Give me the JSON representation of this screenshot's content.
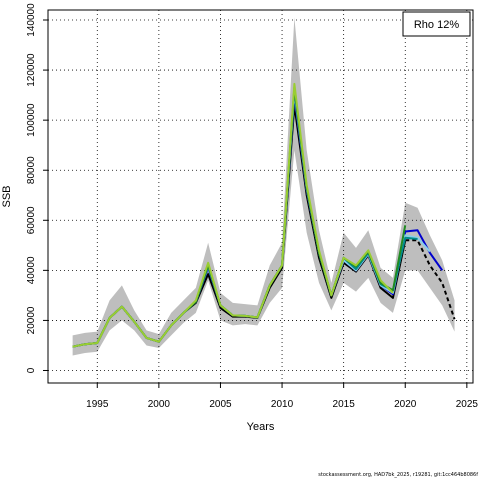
{
  "chart_data": {
    "type": "line",
    "xlabel": "Years",
    "ylabel": "SSB",
    "xlim": [
      1991,
      2025.5
    ],
    "ylim": [
      -5000,
      144000
    ],
    "x_ticks": [
      1995,
      2000,
      2005,
      2010,
      2015,
      2020,
      2025
    ],
    "y_ticks": [
      0,
      20000,
      40000,
      60000,
      80000,
      100000,
      120000,
      140000
    ],
    "grid": true,
    "legend": {
      "text": "Rho 12%",
      "placement": "top-right"
    },
    "ci_band": {
      "color": "#bebebe",
      "x": [
        1993,
        1994,
        1995,
        1996,
        1997,
        1998,
        1999,
        2000,
        2001,
        2002,
        2003,
        2004,
        2005,
        2006,
        2007,
        2008,
        2009,
        2010,
        2011,
        2012,
        2013,
        2014,
        2015,
        2016,
        2017,
        2018,
        2019,
        2020,
        2021,
        2022,
        2023,
        2024
      ],
      "upper": [
        14000,
        15000,
        15500,
        28000,
        34000,
        24000,
        16000,
        14500,
        23000,
        28000,
        33000,
        51000,
        31000,
        27000,
        26500,
        26000,
        42000,
        51000,
        141000,
        88000,
        56000,
        35000,
        55000,
        49000,
        56000,
        41000,
        37000,
        67000,
        65000,
        54000,
        44000,
        28000
      ],
      "lower": [
        6000,
        7000,
        7500,
        16000,
        20000,
        16000,
        10000,
        9000,
        14000,
        19000,
        23000,
        36000,
        20000,
        18000,
        18500,
        18000,
        27000,
        33000,
        88000,
        55000,
        35000,
        24000,
        35000,
        31500,
        37000,
        27000,
        23000,
        40000,
        40000,
        33000,
        26000,
        15500
      ]
    },
    "series": [
      {
        "color": "#000000",
        "style": "solid",
        "x": [
          1993,
          1994,
          1995,
          1996,
          1997,
          1998,
          1999,
          2000,
          2001,
          2002,
          2003,
          2004,
          2005,
          2006,
          2007,
          2008,
          2009,
          2010,
          2011,
          2012,
          2013,
          2014,
          2015,
          2016,
          2017,
          2018,
          2019,
          2020
        ],
        "y": [
          9500,
          10500,
          11000,
          21000,
          25500,
          19500,
          13000,
          11500,
          18000,
          23000,
          27000,
          38500,
          25000,
          21500,
          21500,
          21000,
          33000,
          41000,
          106000,
          70000,
          45000,
          29000,
          43000,
          39500,
          46000,
          33000,
          29000,
          52000
        ]
      },
      {
        "color": "#000000",
        "style": "dashed",
        "x": [
          2020,
          2021,
          2022,
          2023,
          2024
        ],
        "y": [
          52000,
          52000,
          42000,
          35000,
          20500
        ]
      },
      {
        "color": "#0000cd",
        "style": "solid",
        "x": [
          1993,
          1994,
          1995,
          1996,
          1997,
          1998,
          1999,
          2000,
          2001,
          2002,
          2003,
          2004,
          2005,
          2006,
          2007,
          2008,
          2009,
          2010,
          2011,
          2012,
          2013,
          2014,
          2015,
          2016,
          2017,
          2018,
          2019,
          2020,
          2021,
          2022,
          2023
        ],
        "y": [
          9500,
          10500,
          11000,
          21000,
          25500,
          19500,
          13000,
          11500,
          18000,
          23000,
          27500,
          41000,
          26000,
          22000,
          21800,
          21200,
          34000,
          42000,
          110000,
          72000,
          47000,
          30000,
          44000,
          40000,
          46500,
          34000,
          30500,
          55500,
          56000,
          47000,
          40000
        ]
      },
      {
        "color": "#87ceeb",
        "style": "solid",
        "x": [
          1993,
          1994,
          1995,
          1996,
          1997,
          1998,
          1999,
          2000,
          2001,
          2002,
          2003,
          2004,
          2005,
          2006,
          2007,
          2008,
          2009,
          2010,
          2011,
          2012,
          2013,
          2014,
          2015,
          2016,
          2017,
          2018,
          2019,
          2020,
          2021,
          2022
        ],
        "y": [
          9500,
          10500,
          11000,
          21000,
          25500,
          19500,
          13000,
          11500,
          18000,
          23000,
          27500,
          41500,
          26000,
          22000,
          21800,
          21200,
          34000,
          42000,
          111000,
          72500,
          47000,
          30000,
          44000,
          40000,
          46500,
          34000,
          31000,
          54000,
          53000,
          47500
        ]
      },
      {
        "color": "#008b8b",
        "style": "solid",
        "x": [
          1993,
          1994,
          1995,
          1996,
          1997,
          1998,
          1999,
          2000,
          2001,
          2002,
          2003,
          2004,
          2005,
          2006,
          2007,
          2008,
          2009,
          2010,
          2011,
          2012,
          2013,
          2014,
          2015,
          2016,
          2017,
          2018,
          2019,
          2020,
          2021
        ],
        "y": [
          9500,
          10500,
          11000,
          21000,
          25500,
          19500,
          13000,
          11500,
          18000,
          23000,
          27500,
          41800,
          26000,
          22000,
          21800,
          21200,
          34000,
          42000,
          112000,
          73000,
          47000,
          30000,
          45000,
          40500,
          47000,
          34500,
          32000,
          53000,
          52500
        ]
      },
      {
        "color": "#228b22",
        "style": "solid",
        "x": [
          1993,
          1994,
          1995,
          1996,
          1997,
          1998,
          1999,
          2000,
          2001,
          2002,
          2003,
          2004,
          2005,
          2006,
          2007,
          2008,
          2009,
          2010,
          2011,
          2012,
          2013,
          2014,
          2015,
          2016,
          2017,
          2018,
          2019,
          2020
        ],
        "y": [
          9500,
          10500,
          11000,
          21000,
          25500,
          19500,
          13000,
          11500,
          18000,
          23000,
          27500,
          42000,
          26000,
          22000,
          21800,
          21200,
          34000,
          42000,
          113000,
          73000,
          47000,
          30000,
          45000,
          41500,
          47500,
          35000,
          32000,
          58000
        ]
      },
      {
        "color": "#9acd32",
        "style": "solid",
        "x": [
          1993,
          1994,
          1995,
          1996,
          1997,
          1998,
          1999,
          2000,
          2001,
          2002,
          2003,
          2004,
          2005,
          2006,
          2007,
          2008,
          2009,
          2010,
          2011,
          2012,
          2013,
          2014,
          2015,
          2016,
          2017,
          2018,
          2019
        ],
        "y": [
          9500,
          10500,
          11000,
          21000,
          25500,
          19500,
          13000,
          11500,
          18000,
          23000,
          28000,
          43000,
          26000,
          22000,
          21800,
          21200,
          34000,
          42000,
          114500,
          74000,
          48000,
          30000,
          45000,
          42000,
          48000,
          36000,
          31000
        ]
      }
    ]
  },
  "footer_text": "stockassessment.org, HAD7bk_2025, r19281, git:1cc464b8086f"
}
